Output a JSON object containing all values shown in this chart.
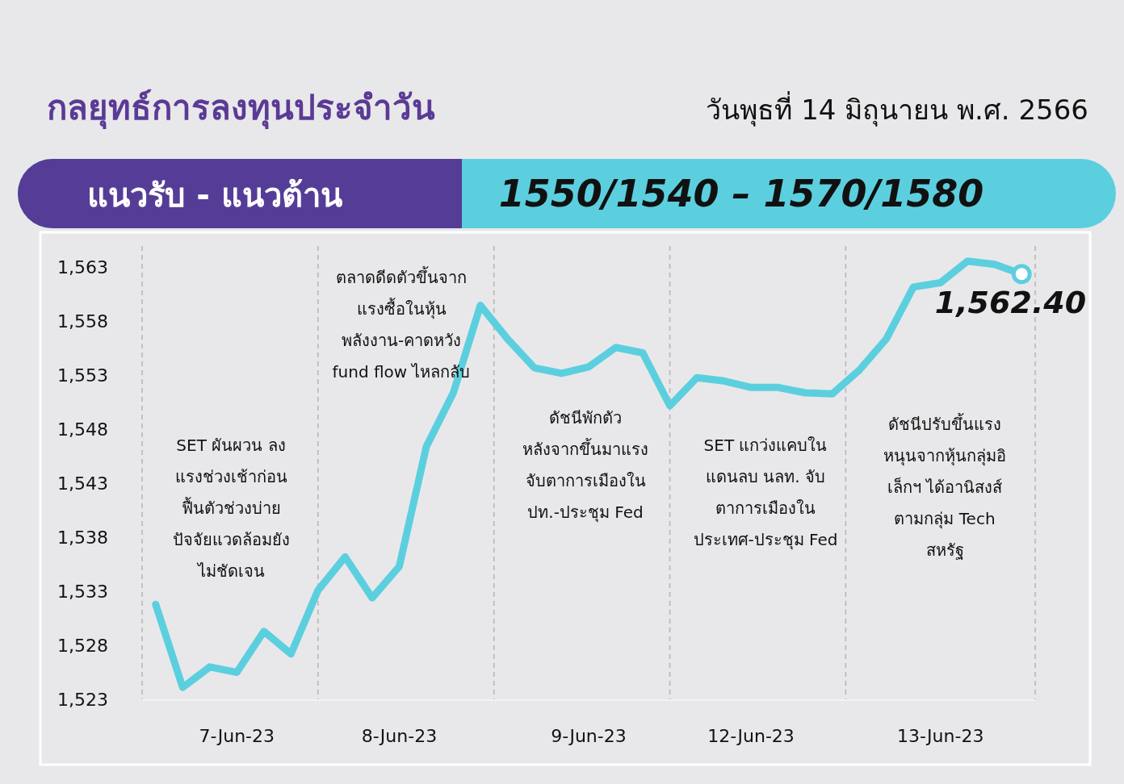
{
  "chart_data": {
    "type": "line",
    "title": "กลยุทธ์การลงทุนประจำวัน",
    "subtitle": "วันพุธที่ 14 มิถุนายน พ.ศ. 2566",
    "annotations": [
      "แนวรับ - แนวต้าน",
      "1550/1540 – 1570/1580",
      "SET ผันผวน ลง\nแรงช่วงเช้าก่อน\nฟื้นตัวช่วงบ่าย\nปัจจัยแวดล้อมยัง\nไม่ชัดเจน",
      "ตลาดดีดตัวขึ้นจาก\nแรงซื้อในหุ้น\nพลังงาน-คาดหวัง\nfund flow ไหลกลับ",
      "ดัชนีพักตัว\nหลังจากขึ้นมาแรง\nจับตาการเมืองใน\nปท.-ประชุม Fed",
      "SET  แกว่งแคบใน\nแดนลบ นลท. จับ\nตาการเมืองใน\nประเทศ-ประชุม Fed",
      "ดัชนีปรับขึ้นแรง\nหนุนจากหุ้นกลุ่มอิ\nเล็กฯ ได้อานิสงส์\nตามกลุ่ม Tech\nสหรัฐ",
      {
        "text": "1,562.40",
        "y": 1562.4
      }
    ],
    "categories": [
      null,
      null,
      null,
      "7-Jun-23",
      null,
      null,
      null,
      null,
      null,
      "8-Jun-23",
      null,
      null,
      null,
      null,
      null,
      null,
      "9-Jun-23",
      null,
      null,
      null,
      null,
      null,
      "12-Jun-23",
      null,
      null,
      null,
      null,
      null,
      null,
      "13-Jun-23",
      null,
      null,
      null
    ],
    "series": [
      {
        "color": "#5ccfdf",
        "values": [
          1531.8,
          1524.1,
          1526.0,
          1525.5,
          1529.3,
          1527.2,
          1533.1,
          1536.2,
          1532.4,
          1535.3,
          1546.4,
          1551.4,
          1559.5,
          1556.4,
          1553.7,
          1553.2,
          1553.8,
          1555.6,
          1555.1,
          1550.2,
          1552.8,
          1552.5,
          1551.9,
          1551.9,
          1551.4,
          1551.3,
          1553.5,
          1556.4,
          1561.2,
          1561.6,
          1563.6,
          1563.3,
          1562.4
        ]
      }
    ],
    "ylim": [
      1523,
      1565
    ],
    "yticks": [
      {
        "value": 1523,
        "label": "1,523"
      },
      {
        "value": 1528,
        "label": "1,528"
      },
      {
        "value": 1533,
        "label": "1,533"
      },
      {
        "value": 1538,
        "label": "1,538"
      },
      {
        "value": 1543,
        "label": "1,543"
      },
      {
        "value": 1548,
        "label": "1,548"
      },
      {
        "value": 1553,
        "label": "1,553"
      },
      {
        "value": 1558,
        "label": "1,558"
      },
      {
        "value": 1563,
        "label": "1,563"
      }
    ],
    "grid": "x",
    "marker": "none",
    "line_style": "solid"
  }
}
